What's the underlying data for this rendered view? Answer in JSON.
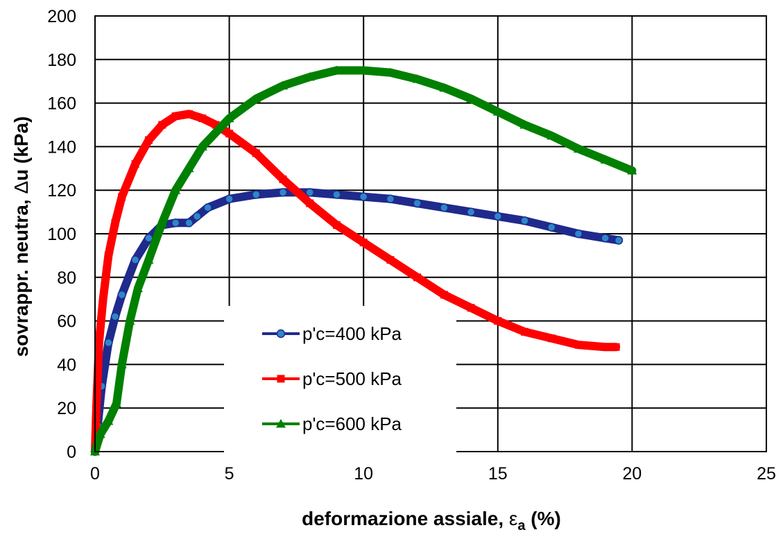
{
  "chart_data": {
    "type": "line",
    "xlabel": {
      "main": "deformazione assiale, ",
      "symbol": "ε",
      "sub": "a",
      "tail": " (%)"
    },
    "ylabel": {
      "main": "sovrappr. neutra, ",
      "symbol": "Δ",
      "tail": "u (kPa)"
    },
    "xlim": [
      0,
      25
    ],
    "ylim": [
      0,
      200
    ],
    "xticks": [
      0,
      5,
      10,
      15,
      20,
      25
    ],
    "yticks": [
      0,
      20,
      40,
      60,
      80,
      100,
      120,
      140,
      160,
      180,
      200
    ],
    "grid": true,
    "legend": {
      "placement": "lower-center"
    },
    "series": [
      {
        "name": "p'c=400 kPa",
        "color": "#1f2a8c",
        "marker": "circle",
        "points": [
          [
            0,
            0
          ],
          [
            0.1,
            12
          ],
          [
            0.25,
            30
          ],
          [
            0.5,
            50
          ],
          [
            0.75,
            62
          ],
          [
            1.0,
            72
          ],
          [
            1.5,
            88
          ],
          [
            2.0,
            98
          ],
          [
            2.5,
            104
          ],
          [
            3.0,
            105
          ],
          [
            3.5,
            105
          ],
          [
            3.8,
            108
          ],
          [
            4.2,
            112
          ],
          [
            5.0,
            116
          ],
          [
            6.0,
            118
          ],
          [
            7.0,
            119
          ],
          [
            8.0,
            119
          ],
          [
            9.0,
            118
          ],
          [
            10.0,
            117
          ],
          [
            11.0,
            116
          ],
          [
            12.0,
            114
          ],
          [
            13.0,
            112
          ],
          [
            14.0,
            110
          ],
          [
            15.0,
            108
          ],
          [
            16.0,
            106
          ],
          [
            17.0,
            103
          ],
          [
            18.0,
            100
          ],
          [
            19.0,
            98
          ],
          [
            19.5,
            97
          ]
        ]
      },
      {
        "name": "p'c=500 kPa",
        "color": "#ff0000",
        "marker": "square",
        "points": [
          [
            0,
            0
          ],
          [
            0.05,
            20
          ],
          [
            0.15,
            50
          ],
          [
            0.3,
            70
          ],
          [
            0.5,
            90
          ],
          [
            0.75,
            105
          ],
          [
            1.0,
            117
          ],
          [
            1.5,
            132
          ],
          [
            2.0,
            143
          ],
          [
            2.5,
            150
          ],
          [
            3.0,
            154
          ],
          [
            3.5,
            155
          ],
          [
            4.0,
            153
          ],
          [
            4.5,
            150
          ],
          [
            5.0,
            146
          ],
          [
            6.0,
            137
          ],
          [
            7.0,
            125
          ],
          [
            8.0,
            114
          ],
          [
            9.0,
            104
          ],
          [
            10.0,
            96
          ],
          [
            11.0,
            88
          ],
          [
            12.0,
            80
          ],
          [
            13.0,
            72
          ],
          [
            14.0,
            66
          ],
          [
            15.0,
            60
          ],
          [
            16.0,
            55
          ],
          [
            17.0,
            52
          ],
          [
            18.0,
            49
          ],
          [
            19.0,
            48
          ],
          [
            19.4,
            48
          ]
        ]
      },
      {
        "name": "p'c=600 kPa",
        "color": "#008000",
        "marker": "triangle",
        "points": [
          [
            0,
            0
          ],
          [
            0.2,
            8
          ],
          [
            0.5,
            14
          ],
          [
            0.8,
            22
          ],
          [
            1.0,
            40
          ],
          [
            1.3,
            60
          ],
          [
            1.6,
            75
          ],
          [
            2.0,
            88
          ],
          [
            2.5,
            105
          ],
          [
            3.0,
            120
          ],
          [
            3.5,
            130
          ],
          [
            4.0,
            140
          ],
          [
            5.0,
            153
          ],
          [
            6.0,
            162
          ],
          [
            7.0,
            168
          ],
          [
            8.0,
            172
          ],
          [
            9.0,
            175
          ],
          [
            10.0,
            175
          ],
          [
            11.0,
            174
          ],
          [
            12.0,
            171
          ],
          [
            13.0,
            167
          ],
          [
            14.0,
            162
          ],
          [
            15.0,
            156
          ],
          [
            16.0,
            150
          ],
          [
            17.0,
            145
          ],
          [
            18.0,
            139
          ],
          [
            19.0,
            134
          ],
          [
            20.0,
            129
          ]
        ]
      }
    ]
  }
}
